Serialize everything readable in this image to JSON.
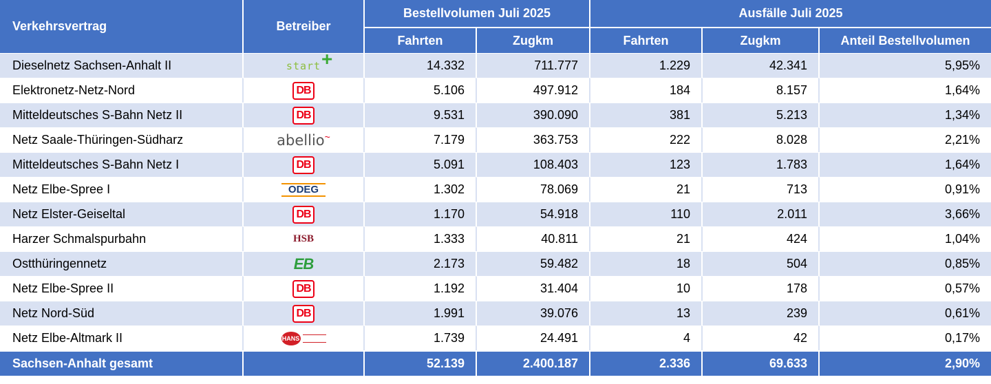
{
  "headers": {
    "vertrag": "Verkehrsvertrag",
    "betreiber": "Betreiber",
    "bestell_group": "Bestellvolumen Juli 2025",
    "ausfall_group": "Ausfälle Juli 2025",
    "fahrten": "Fahrten",
    "zugkm": "Zugkm",
    "fahrten2": "Fahrten",
    "zugkm2": "Zugkm",
    "anteil": "Anteil Bestellvolumen"
  },
  "logos": {
    "db": "DB",
    "start": "start",
    "start_plus": "+",
    "abellio": "abellio",
    "odeg": "ODEG",
    "hsb": "HSB",
    "eb": "EB",
    "hans": "HANS"
  },
  "rows": [
    {
      "name": "Dieselnetz Sachsen-Anhalt II",
      "logo": "start",
      "bv_fahrten": "14.332",
      "bv_zugkm": "711.777",
      "af_fahrten": "1.229",
      "af_zugkm": "42.341",
      "anteil": "5,95%"
    },
    {
      "name": "Elektronetz-Netz-Nord",
      "logo": "db",
      "bv_fahrten": "5.106",
      "bv_zugkm": "497.912",
      "af_fahrten": "184",
      "af_zugkm": "8.157",
      "anteil": "1,64%"
    },
    {
      "name": "Mitteldeutsches S-Bahn Netz II",
      "logo": "db",
      "bv_fahrten": "9.531",
      "bv_zugkm": "390.090",
      "af_fahrten": "381",
      "af_zugkm": "5.213",
      "anteil": "1,34%"
    },
    {
      "name": "Netz Saale-Thüringen-Südharz",
      "logo": "abellio",
      "bv_fahrten": "7.179",
      "bv_zugkm": "363.753",
      "af_fahrten": "222",
      "af_zugkm": "8.028",
      "anteil": "2,21%"
    },
    {
      "name": "Mitteldeutsches S-Bahn Netz I",
      "logo": "db",
      "bv_fahrten": "5.091",
      "bv_zugkm": "108.403",
      "af_fahrten": "123",
      "af_zugkm": "1.783",
      "anteil": "1,64%"
    },
    {
      "name": "Netz Elbe-Spree I",
      "logo": "odeg",
      "bv_fahrten": "1.302",
      "bv_zugkm": "78.069",
      "af_fahrten": "21",
      "af_zugkm": "713",
      "anteil": "0,91%"
    },
    {
      "name": "Netz Elster-Geiseltal",
      "logo": "db",
      "bv_fahrten": "1.170",
      "bv_zugkm": "54.918",
      "af_fahrten": "110",
      "af_zugkm": "2.011",
      "anteil": "3,66%"
    },
    {
      "name": "Harzer Schmalspurbahn",
      "logo": "hsb",
      "bv_fahrten": "1.333",
      "bv_zugkm": "40.811",
      "af_fahrten": "21",
      "af_zugkm": "424",
      "anteil": "1,04%"
    },
    {
      "name": "Ostthüringennetz",
      "logo": "eb",
      "bv_fahrten": "2.173",
      "bv_zugkm": "59.482",
      "af_fahrten": "18",
      "af_zugkm": "504",
      "anteil": "0,85%"
    },
    {
      "name": "Netz Elbe-Spree II",
      "logo": "db",
      "bv_fahrten": "1.192",
      "bv_zugkm": "31.404",
      "af_fahrten": "10",
      "af_zugkm": "178",
      "anteil": "0,57%"
    },
    {
      "name": "Netz Nord-Süd",
      "logo": "db",
      "bv_fahrten": "1.991",
      "bv_zugkm": "39.076",
      "af_fahrten": "13",
      "af_zugkm": "239",
      "anteil": "0,61%"
    },
    {
      "name": "Netz Elbe-Altmark II",
      "logo": "hans",
      "bv_fahrten": "1.739",
      "bv_zugkm": "24.491",
      "af_fahrten": "4",
      "af_zugkm": "42",
      "anteil": "0,17%"
    }
  ],
  "total": {
    "name": "Sachsen-Anhalt gesamt",
    "bv_fahrten": "52.139",
    "bv_zugkm": "2.400.187",
    "af_fahrten": "2.336",
    "af_zugkm": "69.633",
    "anteil": "2,90%"
  }
}
